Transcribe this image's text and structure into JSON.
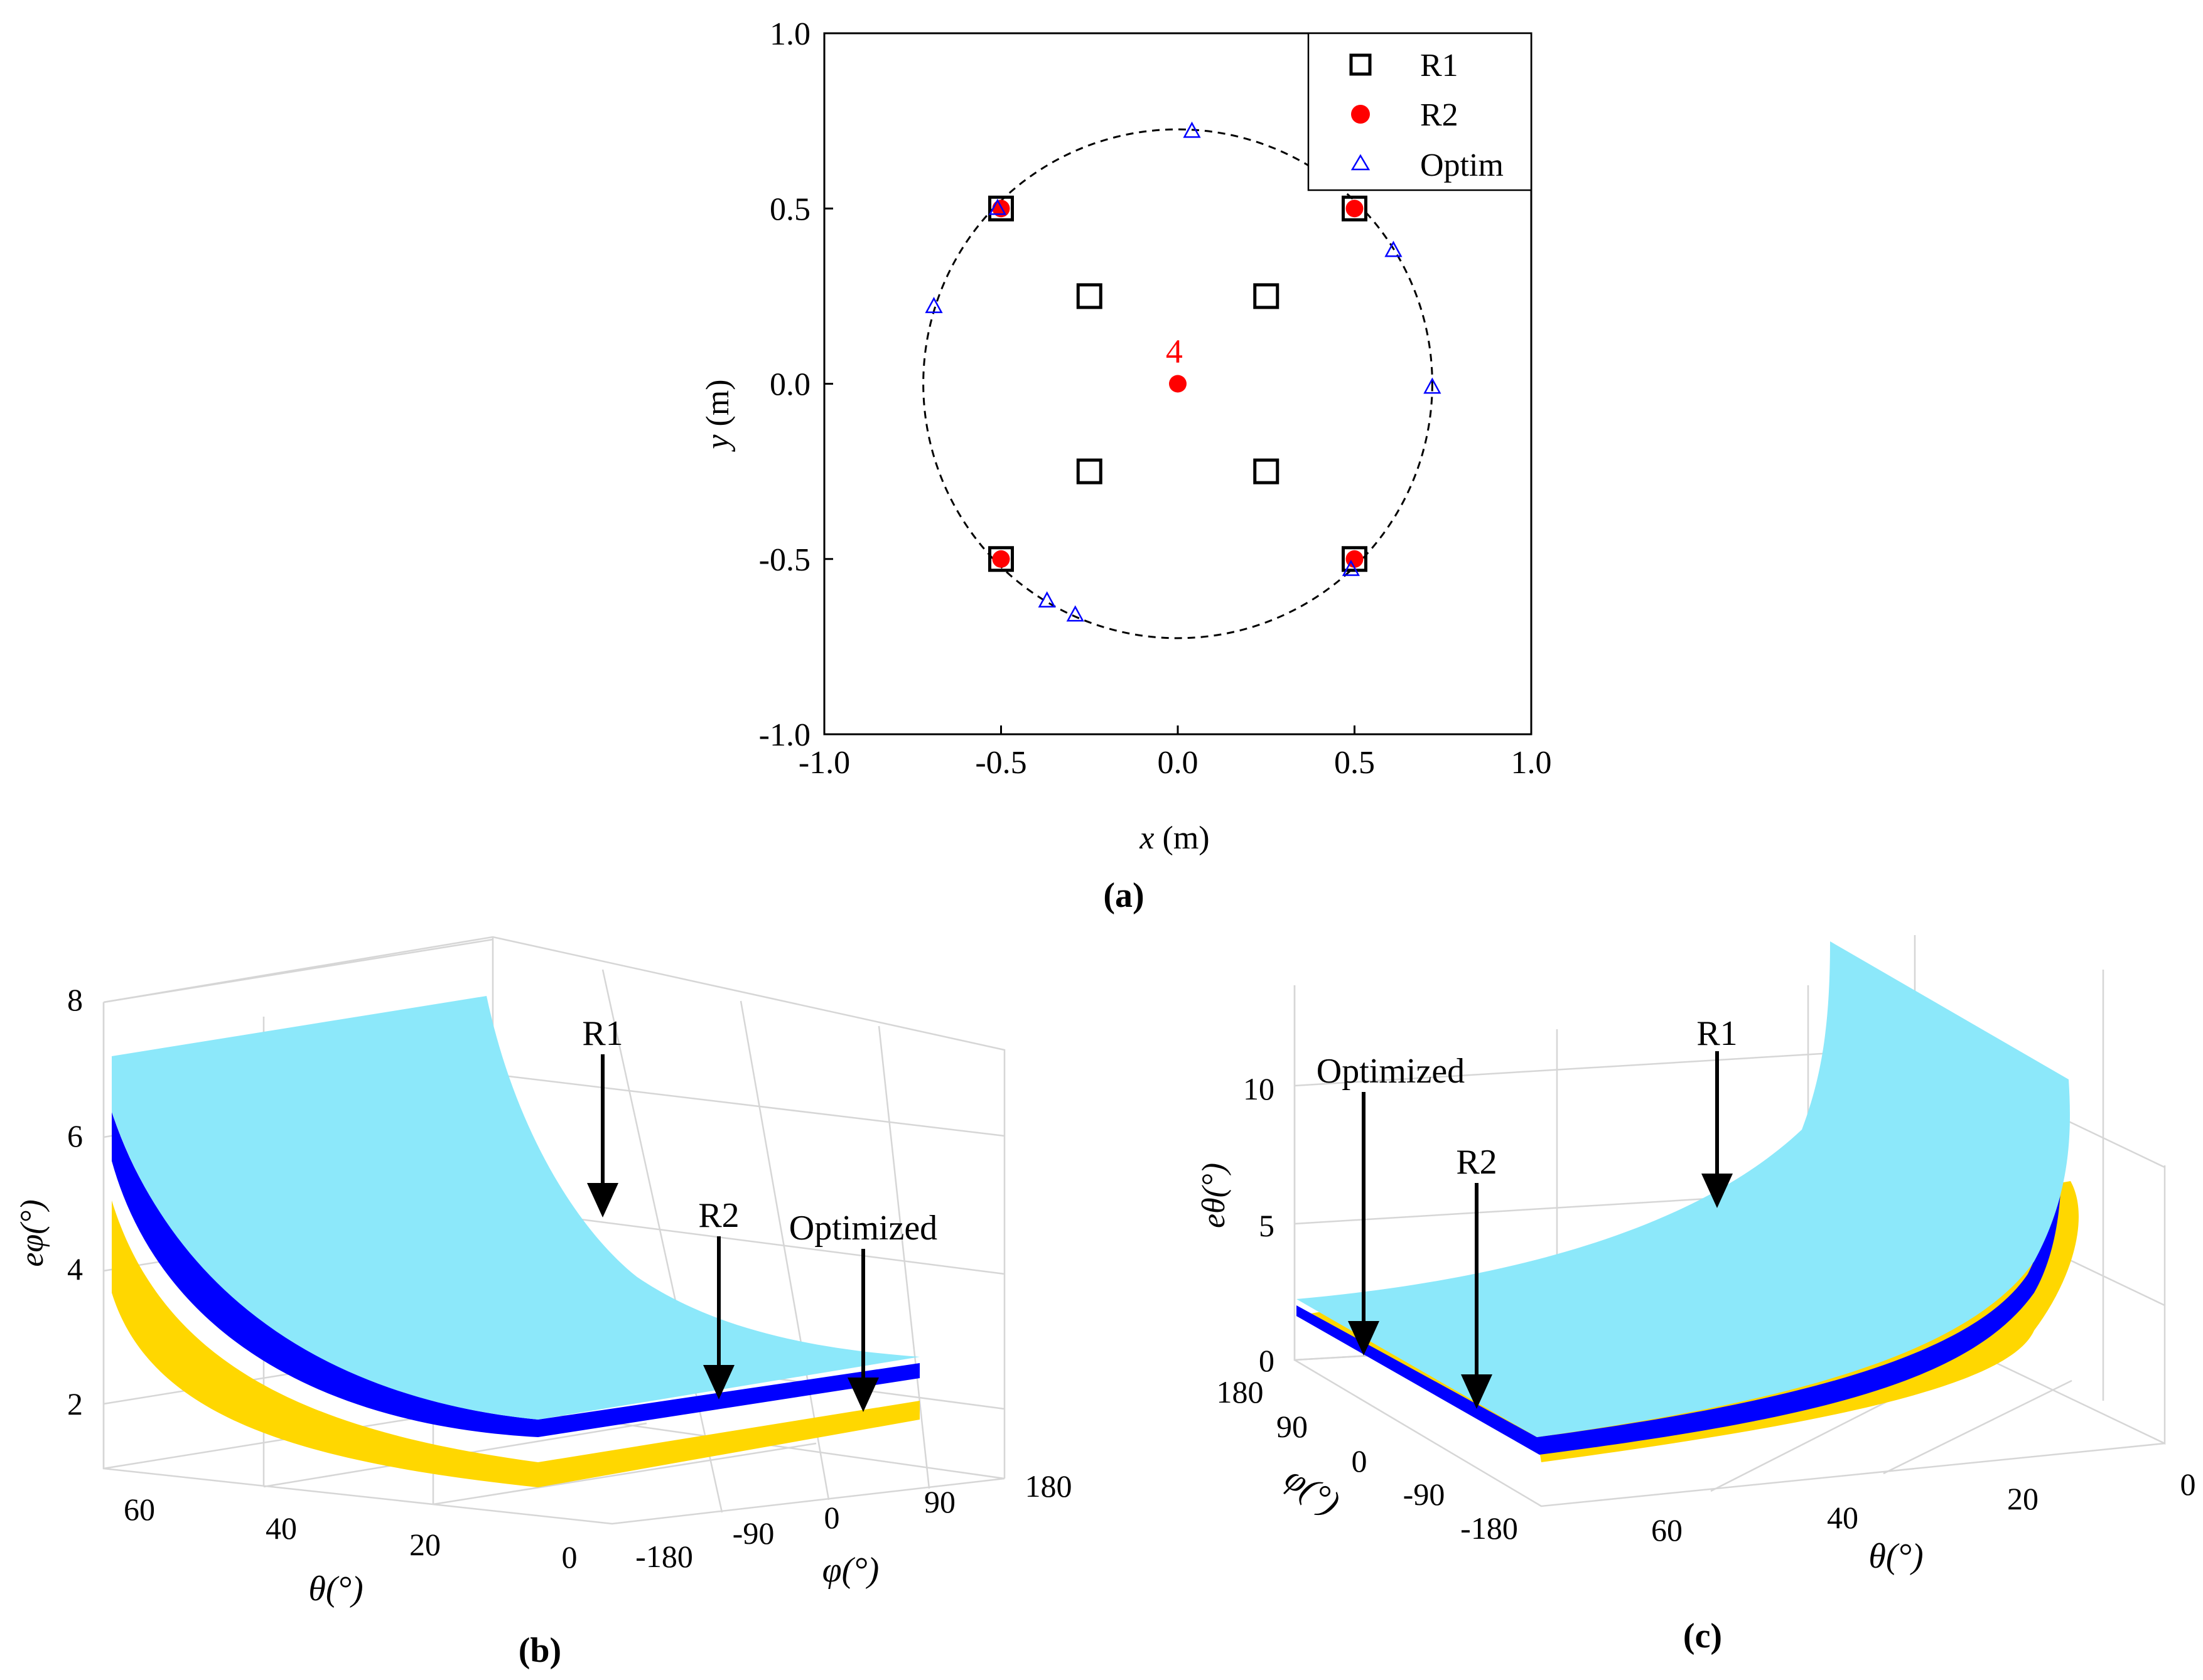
{
  "chart_data": [
    {
      "type": "scatter",
      "panel_label": "(a)",
      "xlabel_var": "x",
      "xlabel_unit": " (m)",
      "ylabel_var": "y",
      "ylabel_unit": " (m)",
      "xlim": [
        -1.0,
        1.0
      ],
      "ylim": [
        -1.0,
        1.0
      ],
      "xticks": [
        "-1.0",
        "-0.5",
        "0.0",
        "0.5",
        "1.0"
      ],
      "yticks": [
        "-1.0",
        "-0.5",
        "0.0",
        "0.5",
        "1.0"
      ],
      "legend_position": "top-right",
      "circle_radius": 0.72,
      "annotation": "4",
      "series": [
        {
          "name": "R1",
          "marker": "open-square",
          "color": "#000000",
          "points": [
            [
              -0.5,
              0.5
            ],
            [
              0.5,
              0.5
            ],
            [
              -0.5,
              -0.5
            ],
            [
              0.5,
              -0.5
            ],
            [
              -0.25,
              0.25
            ],
            [
              0.25,
              0.25
            ],
            [
              -0.25,
              -0.25
            ],
            [
              0.25,
              -0.25
            ]
          ]
        },
        {
          "name": "R2",
          "marker": "filled-circle",
          "color": "#ff0000",
          "points": [
            [
              -0.5,
              0.5
            ],
            [
              0.5,
              0.5
            ],
            [
              -0.5,
              -0.5
            ],
            [
              0.5,
              -0.5
            ],
            [
              0.0,
              0.0
            ]
          ]
        },
        {
          "name": "Optim",
          "marker": "open-triangle",
          "color": "#0000ff",
          "points": [
            [
              0.04,
              0.72
            ],
            [
              -0.51,
              0.5
            ],
            [
              -0.69,
              0.22
            ],
            [
              0.61,
              0.38
            ],
            [
              0.72,
              -0.01
            ],
            [
              0.49,
              -0.53
            ],
            [
              -0.37,
              -0.62
            ],
            [
              -0.29,
              -0.66
            ]
          ]
        }
      ]
    },
    {
      "type": "surface",
      "panel_label": "(b)",
      "zlabel": "eφ(°)",
      "zticks": [
        "8",
        "6",
        "4",
        "2"
      ],
      "theta_label": "θ(°)",
      "theta_ticks": [
        "60",
        "40",
        "20",
        "0"
      ],
      "phi_label": "φ(°)",
      "phi_ticks": [
        "-180",
        "-90",
        "0",
        "90",
        "180"
      ],
      "series": [
        {
          "name": "R1",
          "color": "#8ce8fa",
          "z_at_theta_max": 7.1,
          "z_at_theta_0": 2.8
        },
        {
          "name": "R2",
          "color": "#0000ff",
          "z_at_theta_max": 6.4,
          "z_at_theta_0": 2.6
        },
        {
          "name": "Optimized",
          "color": "#ffd700",
          "z_at_theta_max": 5.0,
          "z_at_theta_0": 2.2
        }
      ],
      "annotations": [
        "R1",
        "R2",
        "Optimized"
      ]
    },
    {
      "type": "surface",
      "panel_label": "(c)",
      "zlabel": "eθ(°)",
      "zticks": [
        "10",
        "5",
        "0"
      ],
      "theta_label": "θ(°)",
      "theta_ticks": [
        "60",
        "40",
        "20",
        "0"
      ],
      "phi_label": "φ(°)",
      "phi_ticks": [
        "180",
        "90",
        "0",
        "-90",
        "-180"
      ],
      "series": [
        {
          "name": "R1",
          "color": "#8ce8fa"
        },
        {
          "name": "R2",
          "color": "#0000ff"
        },
        {
          "name": "Optimized",
          "color": "#ffd700"
        }
      ],
      "annotations": [
        "Optimized",
        "R2",
        "R1"
      ]
    }
  ]
}
